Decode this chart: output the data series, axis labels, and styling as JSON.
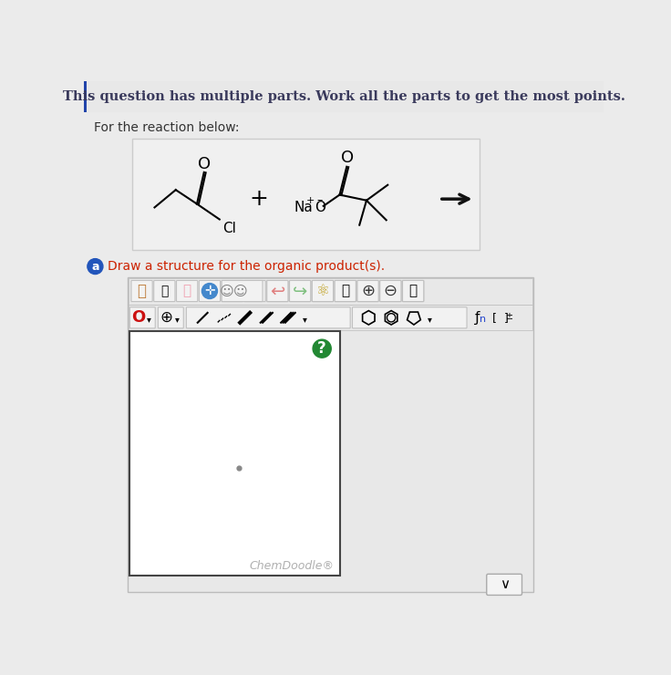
{
  "bg_color": "#ebebeb",
  "header_text": "This question has multiple parts. Work all the parts to get the most points.",
  "header_bg": "#e8e8e8",
  "header_text_color": "#3a3a5c",
  "reaction_label": "For the reaction below:",
  "reaction_label_color": "#333333",
  "reaction_bg": "#f0f0f0",
  "reaction_border": "#cccccc",
  "part_label": "a",
  "part_label_bg": "#2255bb",
  "part_label_color": "#ffffff",
  "part_instruction": "Draw a structure for the organic product(s).",
  "part_instruction_color": "#cc2200",
  "chemdoodle_text": "ChemDoodle®",
  "chemdoodle_color": "#b0b0b0",
  "question_mark_color": "#228833",
  "canvas_bg": "#ffffff",
  "canvas_border": "#444444",
  "outer_bg": "#e8e8e8",
  "outer_border": "#bbbbbb",
  "toolbar_bg": "#e8e8e8",
  "toolbar_item_bg": "#f0f0f0",
  "toolbar_item_border": "#cccccc",
  "left_bar_color": "#2244aa",
  "dot_color": "#888888",
  "arrow_color": "#111111"
}
